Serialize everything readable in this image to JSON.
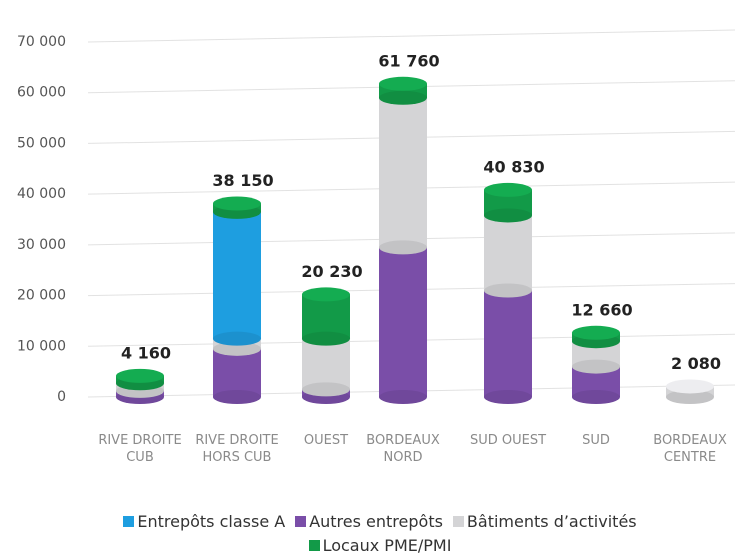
{
  "chart_data": {
    "type": "bar",
    "categories": [
      "RIVE DROITE CUB",
      "RIVE DROITE HORS CUB",
      "OUEST",
      "BORDEAUX NORD",
      "SUD OUEST",
      "SUD",
      "BORDEAUX CENTRE"
    ],
    "series": [
      {
        "name": "Autres entrepôts",
        "color": "#7a4ea8",
        "values": [
          1200,
          9500,
          1500,
          29500,
          21000,
          6000,
          0
        ]
      },
      {
        "name": "Bâtiments d’activités",
        "color": "#d4d4d6",
        "values": [
          1500,
          2000,
          10000,
          29500,
          14800,
          5000,
          2080
        ]
      },
      {
        "name": "Entrepôts classe A",
        "color": "#1e9ee0",
        "values": [
          0,
          25000,
          0,
          0,
          0,
          0,
          0
        ]
      },
      {
        "name": "Locaux PME/PMI",
        "color": "#129a48",
        "values": [
          1460,
          1650,
          8730,
          2760,
          5030,
          1660,
          0
        ]
      }
    ],
    "totals": [
      4160,
      38150,
      20230,
      61760,
      40830,
      12660,
      2080
    ],
    "value_labels": [
      "4 160",
      "38 150",
      "20 230",
      "61 760",
      "40 830",
      "12 660",
      "2 080"
    ],
    "ylim": [
      0,
      70000
    ],
    "yticks": [
      0,
      {
        "value": 10000,
        "label": "10 000"
      },
      {
        "value": 20000,
        "label": "20 000"
      },
      {
        "value": 30000,
        "label": "30 000"
      },
      {
        "value": 40000,
        "label": "40 000"
      },
      {
        "value": 50000,
        "label": "50 000"
      },
      {
        "value": 60000,
        "label": "60 000"
      },
      {
        "value": 70000,
        "label": "70 000"
      }
    ],
    "legend_order": [
      2,
      0,
      1,
      3
    ],
    "grid": true,
    "stacked": true
  }
}
